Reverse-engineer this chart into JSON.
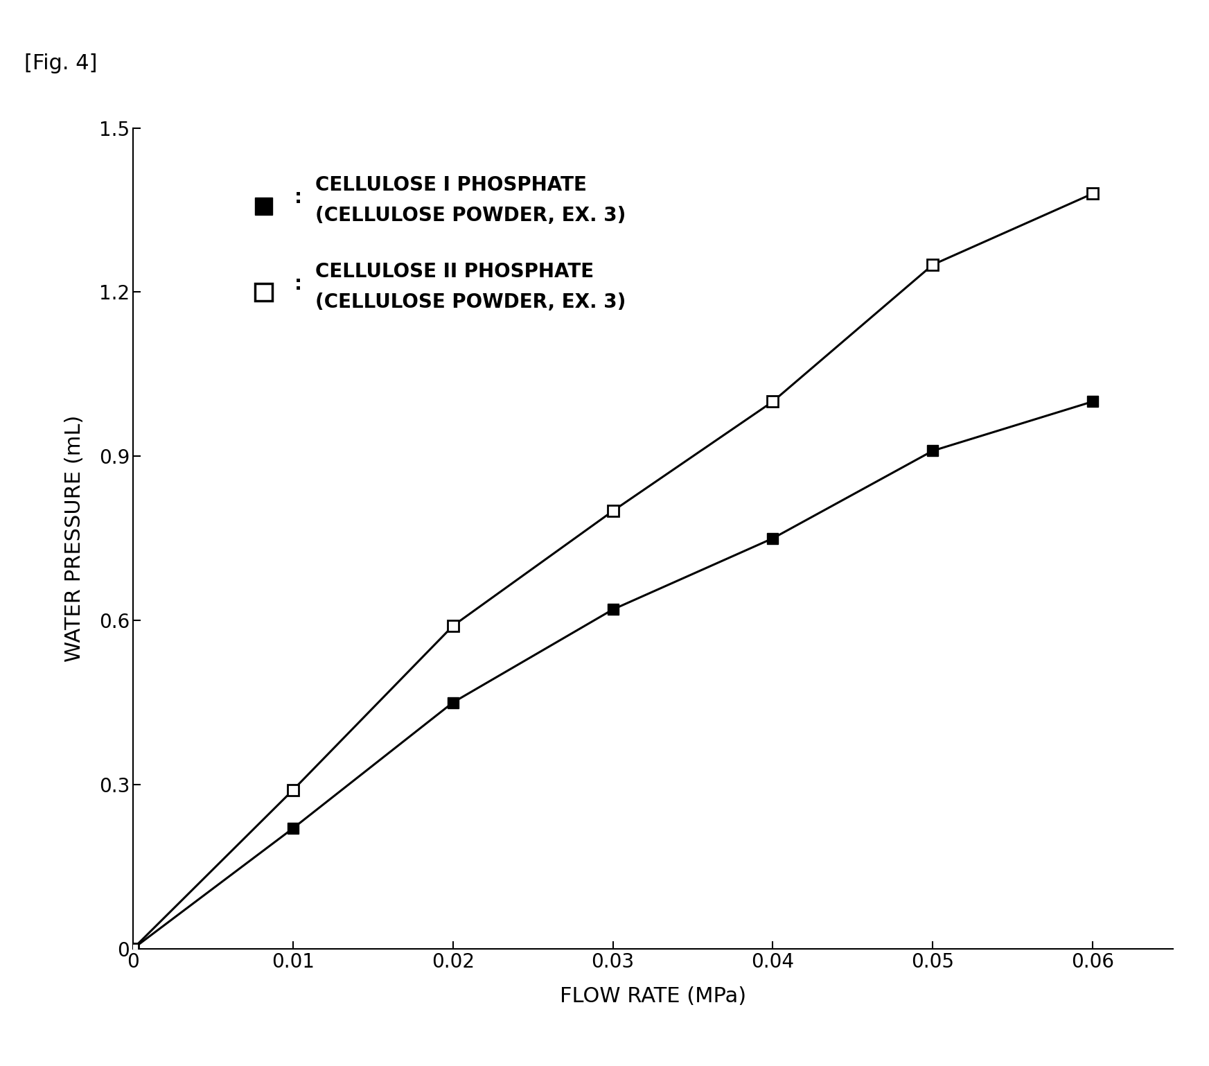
{
  "fig_label": "[Fig. 4]",
  "series1_label_line1": "CELLULOSE I PHOSPHATE",
  "series1_label_line2": "(CELLULOSE POWDER, EX. 3)",
  "series2_label_line1": "CELLULOSE II PHOSPHATE",
  "series2_label_line2": "(CELLULOSE POWDER, EX. 3)",
  "series1_x": [
    0,
    0.01,
    0.02,
    0.03,
    0.04,
    0.05,
    0.06
  ],
  "series1_y": [
    0,
    0.22,
    0.45,
    0.62,
    0.75,
    0.91,
    1.0
  ],
  "series2_x": [
    0,
    0.01,
    0.02,
    0.03,
    0.04,
    0.05,
    0.06
  ],
  "series2_y": [
    0,
    0.29,
    0.59,
    0.8,
    1.0,
    1.25,
    1.38
  ],
  "xlabel": "FLOW RATE (MPa)",
  "ylabel": "WATER PRESSURE (mL)",
  "xlim": [
    0,
    0.065
  ],
  "ylim": [
    0,
    1.5
  ],
  "xticks": [
    0,
    0.01,
    0.02,
    0.03,
    0.04,
    0.05,
    0.06
  ],
  "yticks": [
    0,
    0.3,
    0.6,
    0.9,
    1.2,
    1.5
  ],
  "line_color": "#000000",
  "background_color": "#ffffff",
  "marker_size": 11,
  "line_width": 2.2,
  "legend_marker_size": 18,
  "legend_fontsize": 20,
  "axis_label_fontsize": 22,
  "tick_fontsize": 20,
  "fig_label_fontsize": 22
}
